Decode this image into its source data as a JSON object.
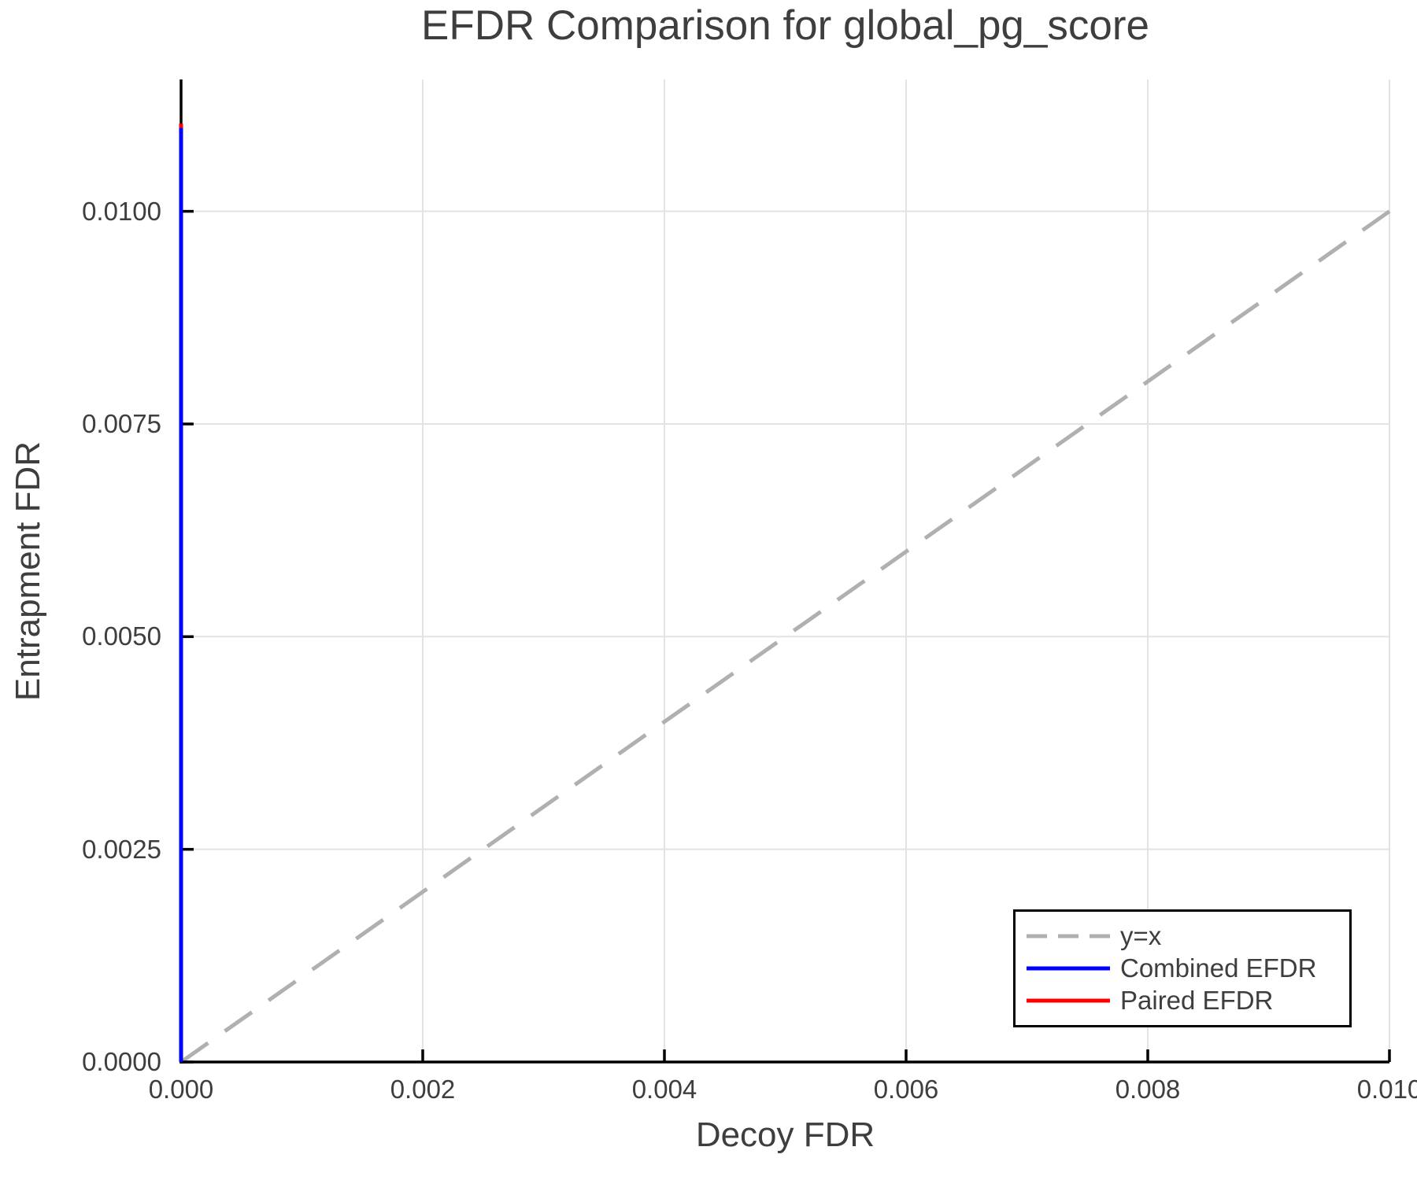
{
  "chart_data": {
    "type": "line",
    "title": "EFDR Comparison for global_pg_score",
    "xlabel": "Decoy FDR",
    "ylabel": "Entrapment FDR",
    "xlim": [
      0.0,
      0.01
    ],
    "ylim": [
      0.0,
      0.01155
    ],
    "grid": true,
    "legend_position": "bottom-right",
    "x_ticks": [
      {
        "value": 0.0,
        "label": "0.000"
      },
      {
        "value": 0.002,
        "label": "0.002"
      },
      {
        "value": 0.004,
        "label": "0.004"
      },
      {
        "value": 0.006,
        "label": "0.006"
      },
      {
        "value": 0.008,
        "label": "0.008"
      },
      {
        "value": 0.01,
        "label": "0.010"
      }
    ],
    "y_ticks": [
      {
        "value": 0.0,
        "label": "0.0000"
      },
      {
        "value": 0.0025,
        "label": "0.0025"
      },
      {
        "value": 0.005,
        "label": "0.0050"
      },
      {
        "value": 0.0075,
        "label": "0.0075"
      },
      {
        "value": 0.01,
        "label": "0.0100"
      }
    ],
    "series": [
      {
        "name": "y=x",
        "color": "#b0b0b0",
        "style": "dashed",
        "width": 5,
        "points": [
          [
            0.0,
            0.0
          ],
          [
            0.01,
            0.01
          ]
        ]
      },
      {
        "name": "Paired EFDR",
        "color": "#ff0000",
        "style": "solid",
        "width": 5,
        "points": [
          [
            0.0,
            0.0
          ],
          [
            0.0,
            0.01103
          ]
        ]
      },
      {
        "name": "Combined EFDR",
        "color": "#0000ff",
        "style": "solid",
        "width": 5,
        "points": [
          [
            0.0,
            0.0
          ],
          [
            0.0,
            0.01098
          ]
        ]
      }
    ],
    "legend": [
      {
        "label": "y=x",
        "color": "#b0b0b0",
        "style": "dashed"
      },
      {
        "label": "Combined EFDR",
        "color": "#0000ff",
        "style": "solid"
      },
      {
        "label": "Paired EFDR",
        "color": "#ff0000",
        "style": "solid"
      }
    ],
    "colors": {
      "gridline": "#e3e3e3",
      "spine": "#000000",
      "text": "#3e3e3e",
      "background": "#ffffff"
    }
  }
}
